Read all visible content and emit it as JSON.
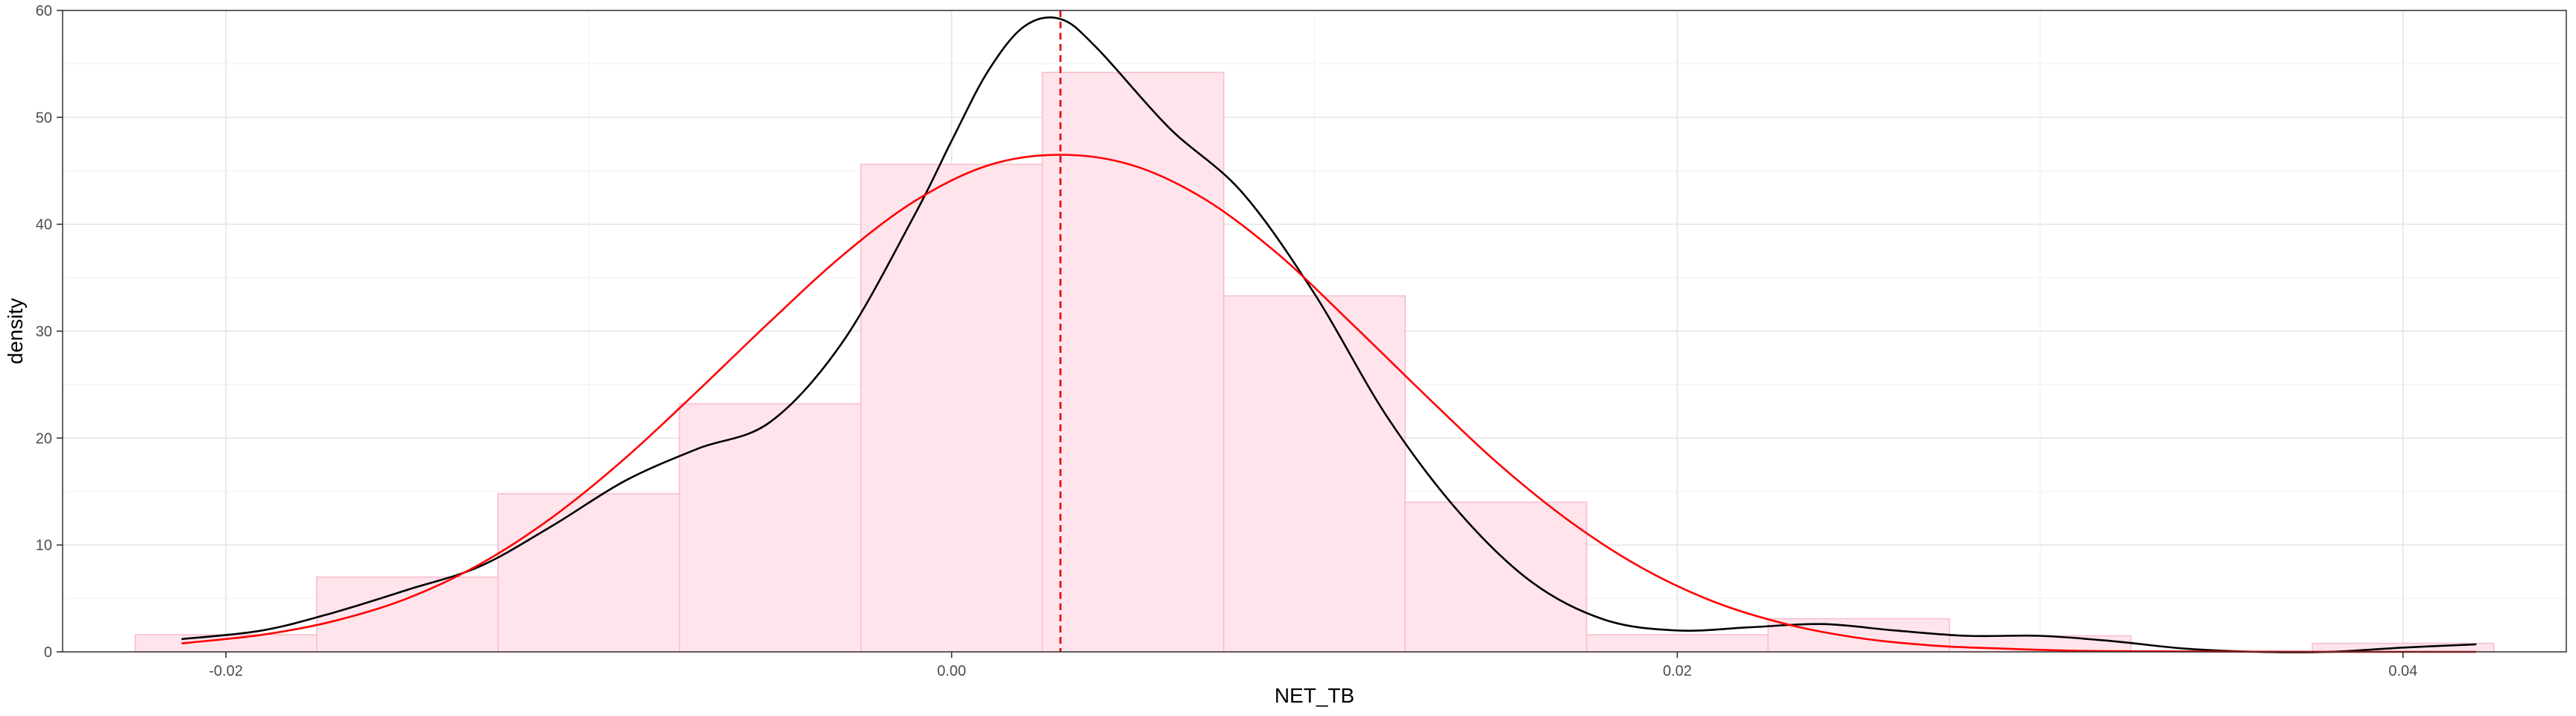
{
  "chart_data": {
    "type": "bar",
    "xlabel": "NET_TB",
    "ylabel": "density",
    "xlim": [
      -0.0245,
      0.0445
    ],
    "ylim": [
      0,
      60
    ],
    "x_ticks": [
      -0.02,
      0.0,
      0.02,
      0.04
    ],
    "x_tick_labels": [
      "-0.02",
      "0.00",
      "0.02",
      "0.04"
    ],
    "y_ticks": [
      0,
      10,
      20,
      30,
      40,
      50,
      60
    ],
    "y_tick_labels": [
      "0",
      "10",
      "20",
      "30",
      "40",
      "50",
      "60"
    ],
    "grid": true,
    "histogram": {
      "bins": [
        {
          "x0": -0.0225,
          "x1": -0.0175,
          "density": 1.6
        },
        {
          "x0": -0.0175,
          "x1": -0.0125,
          "density": 7.0
        },
        {
          "x0": -0.0125,
          "x1": -0.0075,
          "density": 14.8
        },
        {
          "x0": -0.0075,
          "x1": -0.0025,
          "density": 23.2
        },
        {
          "x0": -0.0025,
          "x1": 0.0025,
          "density": 45.6
        },
        {
          "x0": 0.0025,
          "x1": 0.0075,
          "density": 54.2
        },
        {
          "x0": 0.0075,
          "x1": 0.0125,
          "density": 33.3
        },
        {
          "x0": 0.0125,
          "x1": 0.0175,
          "density": 14.0
        },
        {
          "x0": 0.0175,
          "x1": 0.0225,
          "density": 1.6
        },
        {
          "x0": 0.0225,
          "x1": 0.0275,
          "density": 3.1
        },
        {
          "x0": 0.0275,
          "x1": 0.0325,
          "density": 1.5
        },
        {
          "x0": 0.0325,
          "x1": 0.0375,
          "density": 0.0
        },
        {
          "x0": 0.0375,
          "x1": 0.0425,
          "density": 0.8
        }
      ],
      "fill": "#ffe4ec",
      "stroke": "#f7c0cb"
    },
    "series": [
      {
        "type": "line",
        "color": "#000000",
        "x": [
          -0.0212,
          -0.019,
          -0.017,
          -0.015,
          -0.013,
          -0.011,
          -0.009,
          -0.007,
          -0.005,
          -0.003,
          -0.001,
          0.0,
          0.001,
          0.002,
          0.003,
          0.004,
          0.006,
          0.008,
          0.01,
          0.012,
          0.014,
          0.016,
          0.018,
          0.02,
          0.022,
          0.024,
          0.026,
          0.028,
          0.03,
          0.032,
          0.034,
          0.036,
          0.038,
          0.04,
          0.042
        ],
        "y": [
          1.2,
          2.0,
          3.7,
          5.8,
          8.0,
          11.8,
          16.0,
          19.0,
          21.5,
          29.0,
          41.0,
          47.8,
          54.3,
          58.5,
          59.2,
          56.5,
          49.0,
          43.0,
          33.5,
          22.0,
          13.0,
          6.5,
          3.0,
          2.0,
          2.3,
          2.6,
          2.0,
          1.5,
          1.5,
          1.0,
          0.3,
          0.0,
          0.0,
          0.4,
          0.7
        ]
      },
      {
        "type": "line",
        "color": "#ff0000",
        "x": [
          -0.0212,
          -0.019,
          -0.017,
          -0.015,
          -0.013,
          -0.011,
          -0.009,
          -0.007,
          -0.005,
          -0.003,
          -0.001,
          0.001,
          0.003,
          0.005,
          0.007,
          0.009,
          0.011,
          0.013,
          0.015,
          0.017,
          0.019,
          0.021,
          0.023,
          0.025,
          0.027,
          0.029,
          0.031,
          0.033,
          0.035,
          0.037,
          0.039,
          0.042
        ],
        "y": [
          0.8,
          1.6,
          2.9,
          5.0,
          8.2,
          12.6,
          18.1,
          24.4,
          30.9,
          37.1,
          42.2,
          45.5,
          46.5,
          45.5,
          42.3,
          37.2,
          30.8,
          24.2,
          17.8,
          12.3,
          7.9,
          4.7,
          2.6,
          1.3,
          0.6,
          0.3,
          0.1,
          0.05,
          0.02,
          0.01,
          0.0,
          0.0
        ]
      }
    ],
    "vline": {
      "x": 0.003,
      "color": "#e00000",
      "style": "dashed"
    }
  }
}
